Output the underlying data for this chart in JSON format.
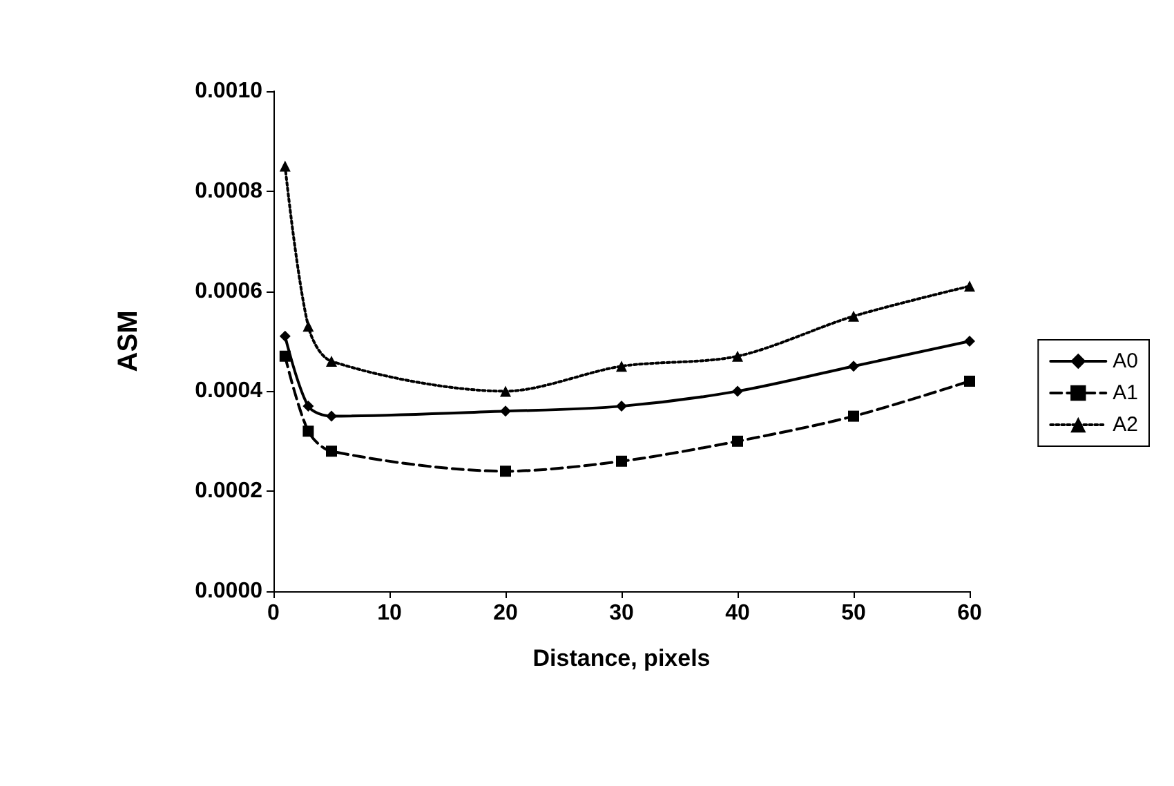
{
  "chart_data": {
    "type": "line",
    "xlabel": "Distance, pixels",
    "ylabel": "ASM",
    "x": [
      1,
      3,
      5,
      20,
      30,
      40,
      50,
      60
    ],
    "series": [
      {
        "name": "A0",
        "color": "#000000",
        "marker": "diamond",
        "line_style": "solid",
        "values": [
          0.00051,
          0.00037,
          0.00035,
          0.00036,
          0.00037,
          0.0004,
          0.00045,
          0.0005
        ]
      },
      {
        "name": "A1",
        "color": "#000000",
        "marker": "square",
        "line_style": "dashed",
        "values": [
          0.00047,
          0.00032,
          0.00028,
          0.00024,
          0.00026,
          0.0003,
          0.00035,
          0.00042
        ]
      },
      {
        "name": "A2",
        "color": "#000000",
        "marker": "triangle",
        "line_style": "dotted",
        "values": [
          0.00085,
          0.00053,
          0.00046,
          0.0004,
          0.00045,
          0.00047,
          0.00055,
          0.00061
        ]
      }
    ],
    "xlim": [
      0,
      60
    ],
    "xticks": [
      0,
      10,
      20,
      30,
      40,
      50,
      60
    ],
    "ylim": [
      0,
      0.001
    ],
    "yticks": [
      {
        "value": 0,
        "label": "0.0000"
      },
      {
        "value": 0.0002,
        "label": "0.0002"
      },
      {
        "value": 0.0004,
        "label": "0.0004"
      },
      {
        "value": 0.0006,
        "label": "0.0006"
      },
      {
        "value": 0.0008,
        "label": "0.0008"
      },
      {
        "value": 0.001,
        "label": "0.0010"
      }
    ],
    "grid": false,
    "legend": "right"
  }
}
